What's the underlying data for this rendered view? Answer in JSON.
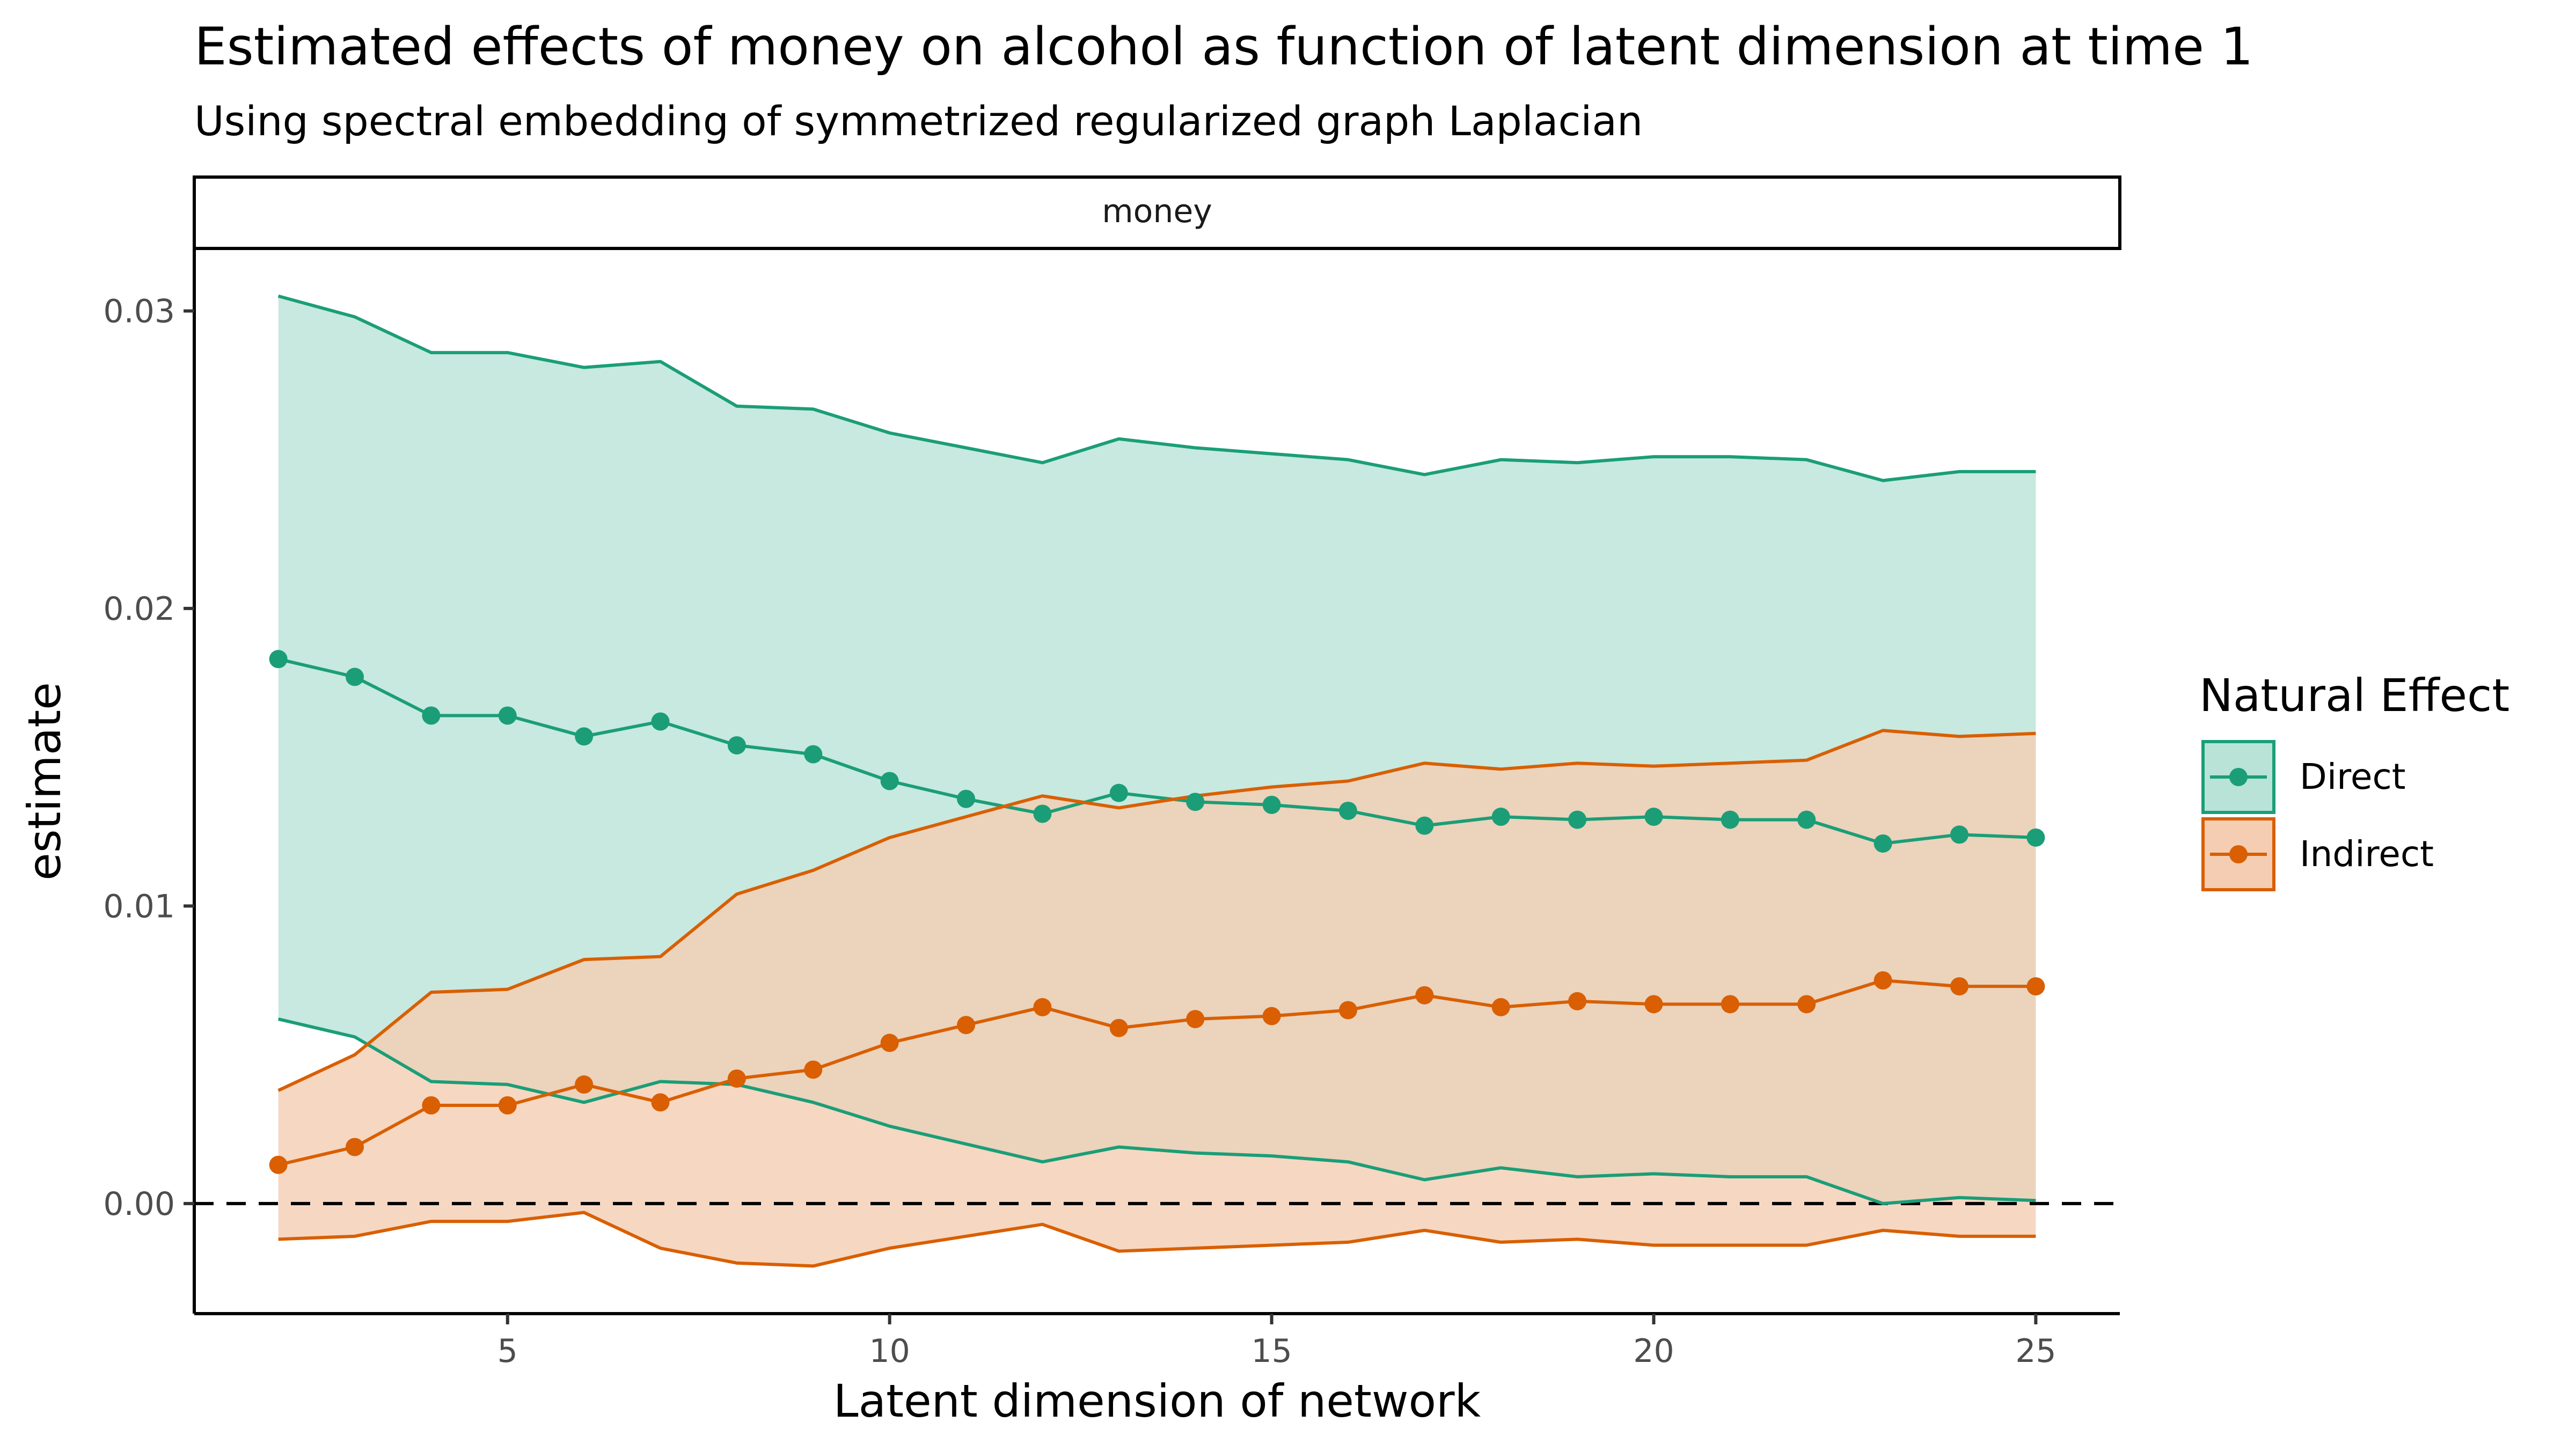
{
  "chart_data": {
    "type": "line",
    "title": "Estimated effects of money on alcohol as function of latent dimension at time 1",
    "subtitle": "Using spectral embedding of symmetrized regularized graph Laplacian",
    "facet_label": "money",
    "xlabel": "Latent dimension of network",
    "ylabel": "estimate",
    "xlim": [
      0.9,
      26.1
    ],
    "ylim": [
      -0.0037,
      0.0321
    ],
    "x_ticks": [
      5,
      10,
      15,
      20,
      25
    ],
    "x_tick_labels": [
      "5",
      "10",
      "15",
      "20",
      "25"
    ],
    "y_ticks": [
      0.0,
      0.01,
      0.02,
      0.03
    ],
    "y_tick_labels": [
      "0.00",
      "0.01",
      "0.02",
      "0.03"
    ],
    "reference_line": {
      "y": 0,
      "style": "dashed"
    },
    "grid": false,
    "legend": {
      "title": "Natural Effect",
      "position": "right"
    },
    "x": [
      2,
      3,
      4,
      5,
      6,
      7,
      8,
      9,
      10,
      11,
      12,
      13,
      14,
      15,
      16,
      17,
      18,
      19,
      20,
      21,
      22,
      23,
      24,
      25
    ],
    "series": [
      {
        "name": "Direct",
        "color": "#1b9e77",
        "fill": "#b9e3d7",
        "values": [
          0.0183,
          0.0177,
          0.0164,
          0.0164,
          0.0157,
          0.0162,
          0.0154,
          0.0151,
          0.0142,
          0.0136,
          0.0131,
          0.0138,
          0.0135,
          0.0134,
          0.0132,
          0.0127,
          0.013,
          0.0129,
          0.013,
          0.0129,
          0.0129,
          0.0121,
          0.0124,
          0.0123
        ],
        "upper": [
          0.0305,
          0.0298,
          0.0286,
          0.0286,
          0.0281,
          0.0283,
          0.0268,
          0.0267,
          0.0259,
          0.0254,
          0.0249,
          0.0257,
          0.0254,
          0.0252,
          0.025,
          0.0245,
          0.025,
          0.0249,
          0.0251,
          0.0251,
          0.025,
          0.0243,
          0.0246,
          0.0246
        ],
        "lower": [
          0.0062,
          0.0056,
          0.0041,
          0.004,
          0.0034,
          0.0041,
          0.004,
          0.0034,
          0.0026,
          0.002,
          0.0014,
          0.0019,
          0.0017,
          0.0016,
          0.0014,
          0.0008,
          0.0012,
          0.0009,
          0.001,
          0.0009,
          0.0009,
          0.0,
          0.0002,
          0.0001
        ]
      },
      {
        "name": "Indirect",
        "color": "#d95f02",
        "fill": "#f4cdb3",
        "values": [
          0.0013,
          0.0019,
          0.0033,
          0.0033,
          0.004,
          0.0034,
          0.0042,
          0.0045,
          0.0054,
          0.006,
          0.0066,
          0.0059,
          0.0062,
          0.0063,
          0.0065,
          0.007,
          0.0066,
          0.0068,
          0.0067,
          0.0067,
          0.0067,
          0.0075,
          0.0073,
          0.0073
        ],
        "upper": [
          0.0038,
          0.005,
          0.0071,
          0.0072,
          0.0082,
          0.0083,
          0.0104,
          0.0112,
          0.0123,
          0.013,
          0.0137,
          0.0133,
          0.0137,
          0.014,
          0.0142,
          0.0148,
          0.0146,
          0.0148,
          0.0147,
          0.0148,
          0.0149,
          0.0159,
          0.0157,
          0.0158
        ],
        "lower": [
          -0.0012,
          -0.0011,
          -0.0006,
          -0.0006,
          -0.0003,
          -0.0015,
          -0.002,
          -0.0021,
          -0.0015,
          -0.0011,
          -0.0007,
          -0.0016,
          -0.0015,
          -0.0014,
          -0.0013,
          -0.0009,
          -0.0013,
          -0.0012,
          -0.0014,
          -0.0014,
          -0.0014,
          -0.0009,
          -0.0011,
          -0.0011
        ]
      }
    ]
  }
}
